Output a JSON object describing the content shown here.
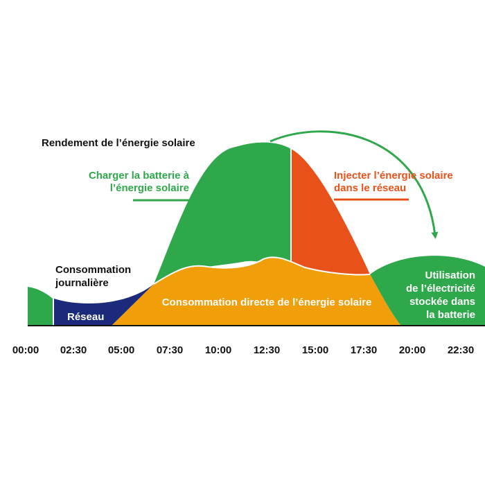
{
  "labels": {
    "yield": "Rendement de l’énergie solaire",
    "charge_line1": "Charger la batterie à",
    "charge_line2": "l’énergie solaire",
    "inject_line1": "Injecter l’énergie solaire",
    "inject_line2": "dans le réseau",
    "consumption_line1": "Consommation",
    "consumption_line2": "journalière",
    "grid": "Réseau",
    "direct": "Consommation directe de l’énergie solaire",
    "stored_line1": "Utilisation",
    "stored_line2": "de l’électricité",
    "stored_line3": "stockée dans",
    "stored_line4": "la batterie"
  },
  "x_axis": {
    "ticks": [
      "00:00",
      "02:30",
      "05:00",
      "07:30",
      "10:00",
      "12:30",
      "15:00",
      "17:30",
      "20:00",
      "22:30"
    ]
  },
  "colors": {
    "green": "#2ea84a",
    "orange_red": "#e8521a",
    "amber": "#f09e0a",
    "navy": "#1b2a7a",
    "text_dark": "#111111",
    "text_green": "#2ea84a",
    "text_orange": "#e8521a",
    "white": "#ffffff"
  }
}
